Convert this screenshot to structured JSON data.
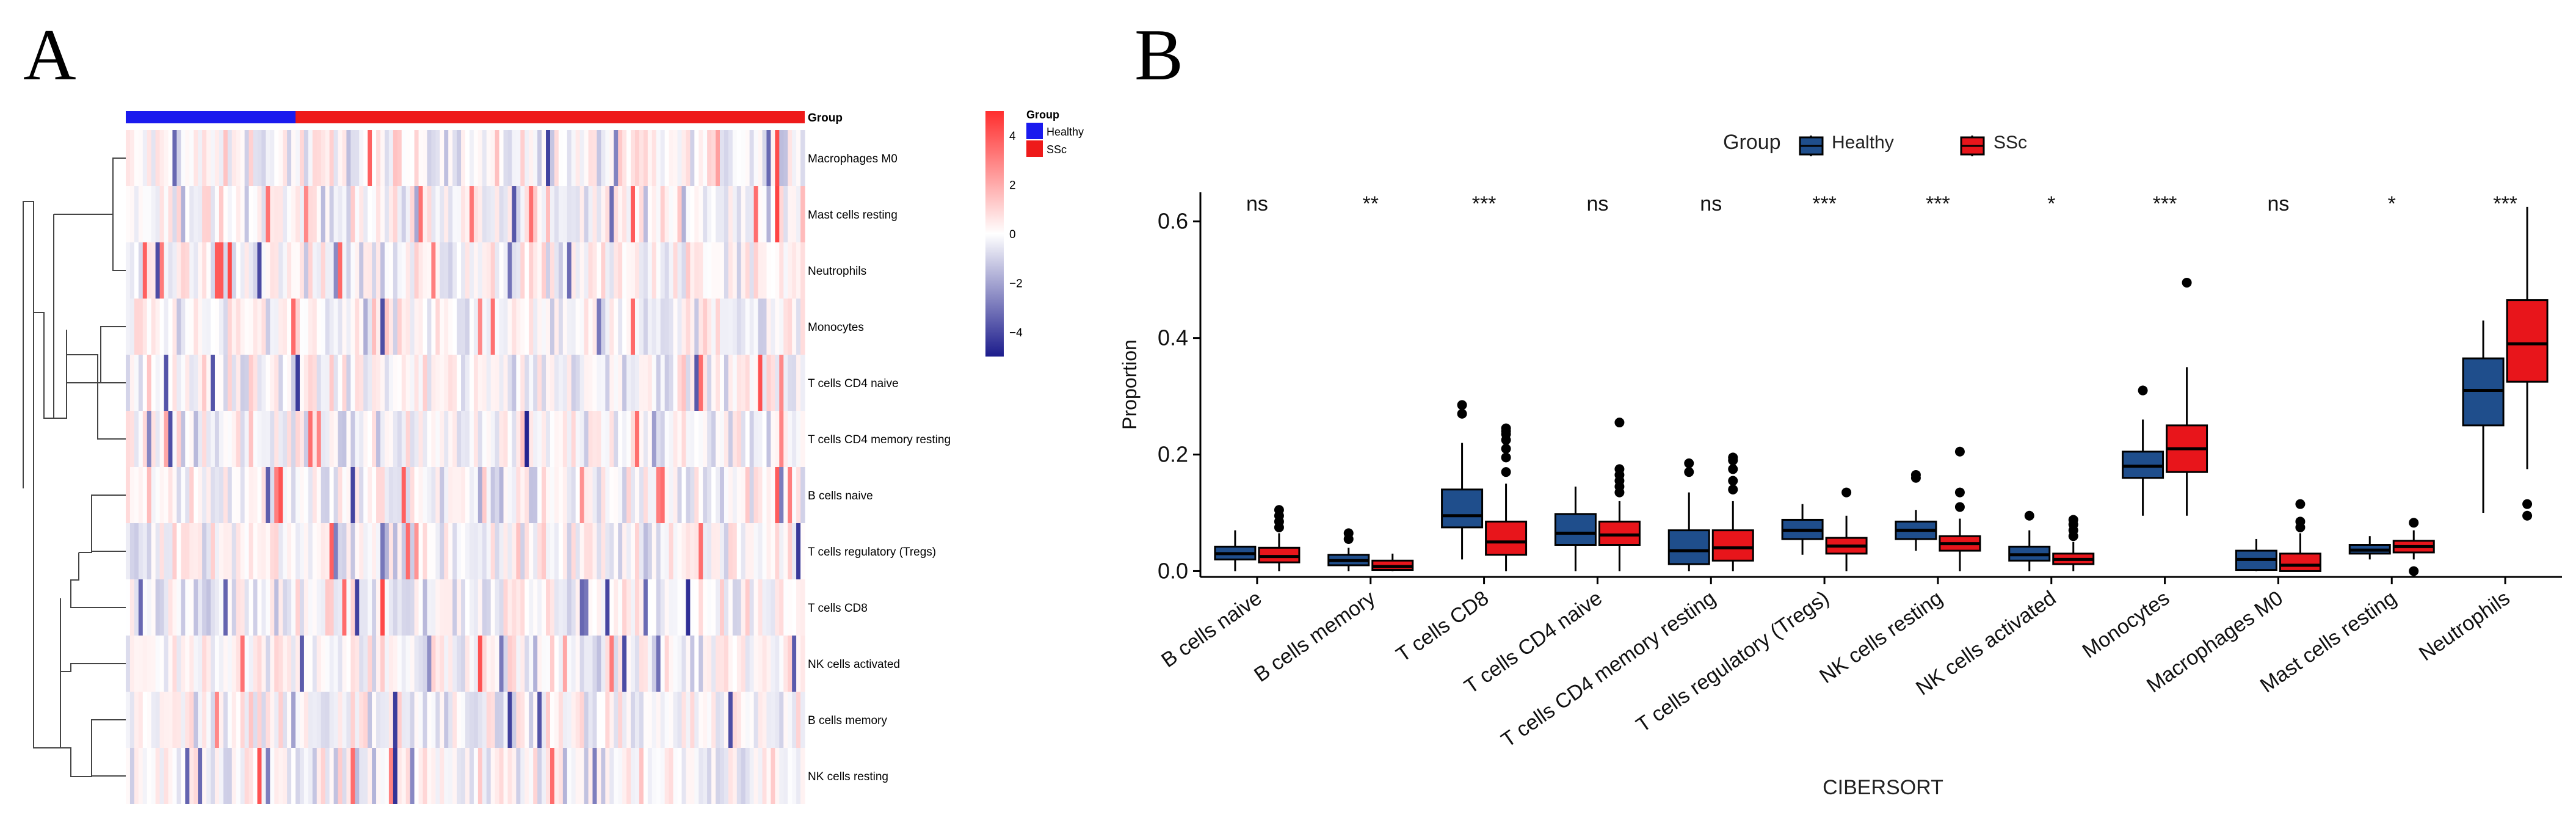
{
  "chart_data": [
    {
      "panel": "A",
      "type": "heatmap",
      "title": "",
      "annotation_label": "Group",
      "groups": [
        {
          "name": "Healthy",
          "color": "#1a1aee"
        },
        {
          "name": "SSc",
          "color": "#ee1a1a"
        }
      ],
      "healthy_fraction": 0.25,
      "rows": [
        "Macrophages M0",
        "Mast cells resting",
        "Neutrophils",
        "Monocytes",
        "T cells CD4 naive",
        "T cells CD4 memory resting",
        "B cells naive",
        "T cells regulatory (Tregs)",
        "T cells CD8",
        "NK cells activated",
        "B cells memory",
        "NK cells resting"
      ],
      "n_samples": 160,
      "color_scale": {
        "min": -5,
        "max": 5,
        "low_color": "#1c1c8c",
        "mid_color": "#ffffff",
        "high_color": "#ff3a3a",
        "ticks": [
          "4",
          "2",
          "0",
          "−2",
          "−4"
        ],
        "tick_values": [
          4,
          2,
          0,
          -2,
          -4
        ]
      }
    },
    {
      "panel": "B",
      "type": "box",
      "legend_title": "Group",
      "legend_position": "top",
      "series": [
        {
          "name": "Healthy",
          "color": "#1f4e8c"
        },
        {
          "name": "SSc",
          "color": "#e8151b"
        }
      ],
      "xlabel": "CIBERSORT",
      "ylabel": "Proportion",
      "ylim": [
        -0.01,
        0.65
      ],
      "yticks": [
        0.0,
        0.2,
        0.4,
        0.6
      ],
      "ytick_labels": [
        "0.0",
        "0.2",
        "0.4",
        "0.6"
      ],
      "categories": [
        "B cells naive",
        "B cells memory",
        "T cells CD8",
        "T cells CD4 naive",
        "T cells CD4 memory resting",
        "T cells regulatory (Tregs)",
        "NK cells resting",
        "NK cells activated",
        "Monocytes",
        "Macrophages M0",
        "Mast cells resting",
        "Neutrophils"
      ],
      "significance": [
        "ns",
        "**",
        "***",
        "ns",
        "ns",
        "***",
        "***",
        "*",
        "***",
        "ns",
        "*",
        "***"
      ],
      "boxes": [
        {
          "healthy": {
            "min": 0.0,
            "q1": 0.02,
            "median": 0.03,
            "q3": 0.042,
            "max": 0.07,
            "outliers": []
          },
          "ssc": {
            "min": 0.0,
            "q1": 0.015,
            "median": 0.025,
            "q3": 0.04,
            "max": 0.065,
            "outliers": [
              0.075,
              0.085,
              0.095,
              0.105
            ]
          }
        },
        {
          "healthy": {
            "min": 0.0,
            "q1": 0.01,
            "median": 0.018,
            "q3": 0.028,
            "max": 0.04,
            "outliers": [
              0.055,
              0.065
            ]
          },
          "ssc": {
            "min": 0.0,
            "q1": 0.002,
            "median": 0.008,
            "q3": 0.018,
            "max": 0.03,
            "outliers": []
          }
        },
        {
          "healthy": {
            "min": 0.02,
            "q1": 0.075,
            "median": 0.095,
            "q3": 0.14,
            "max": 0.22,
            "outliers": [
              0.27,
              0.285
            ]
          },
          "ssc": {
            "min": 0.0,
            "q1": 0.028,
            "median": 0.05,
            "q3": 0.085,
            "max": 0.15,
            "outliers": [
              0.17,
              0.195,
              0.21,
              0.225,
              0.235,
              0.24,
              0.245
            ]
          }
        },
        {
          "healthy": {
            "min": 0.0,
            "q1": 0.045,
            "median": 0.065,
            "q3": 0.098,
            "max": 0.145,
            "outliers": []
          },
          "ssc": {
            "min": 0.0,
            "q1": 0.045,
            "median": 0.062,
            "q3": 0.085,
            "max": 0.12,
            "outliers": [
              0.135,
              0.145,
              0.155,
              0.165,
              0.175,
              0.255
            ]
          }
        },
        {
          "healthy": {
            "min": 0.0,
            "q1": 0.012,
            "median": 0.035,
            "q3": 0.07,
            "max": 0.135,
            "outliers": [
              0.17,
              0.185
            ]
          },
          "ssc": {
            "min": 0.0,
            "q1": 0.018,
            "median": 0.04,
            "q3": 0.07,
            "max": 0.12,
            "outliers": [
              0.14,
              0.155,
              0.175,
              0.19,
              0.195
            ]
          }
        },
        {
          "healthy": {
            "min": 0.028,
            "q1": 0.055,
            "median": 0.07,
            "q3": 0.088,
            "max": 0.115,
            "outliers": []
          },
          "ssc": {
            "min": 0.0,
            "q1": 0.03,
            "median": 0.043,
            "q3": 0.057,
            "max": 0.095,
            "outliers": [
              0.135
            ]
          }
        },
        {
          "healthy": {
            "min": 0.035,
            "q1": 0.055,
            "median": 0.07,
            "q3": 0.085,
            "max": 0.105,
            "outliers": [
              0.16,
              0.165
            ]
          },
          "ssc": {
            "min": 0.0,
            "q1": 0.035,
            "median": 0.047,
            "q3": 0.06,
            "max": 0.09,
            "outliers": [
              0.11,
              0.135,
              0.205
            ]
          }
        },
        {
          "healthy": {
            "min": 0.0,
            "q1": 0.018,
            "median": 0.028,
            "q3": 0.042,
            "max": 0.07,
            "outliers": [
              0.095
            ]
          },
          "ssc": {
            "min": 0.0,
            "q1": 0.012,
            "median": 0.02,
            "q3": 0.03,
            "max": 0.05,
            "outliers": [
              0.06,
              0.07,
              0.08,
              0.088
            ]
          }
        },
        {
          "healthy": {
            "min": 0.095,
            "q1": 0.16,
            "median": 0.18,
            "q3": 0.205,
            "max": 0.26,
            "outliers": [
              0.31
            ]
          },
          "ssc": {
            "min": 0.095,
            "q1": 0.17,
            "median": 0.21,
            "q3": 0.25,
            "max": 0.35,
            "outliers": [
              0.495
            ]
          }
        },
        {
          "healthy": {
            "min": 0.0,
            "q1": 0.002,
            "median": 0.02,
            "q3": 0.035,
            "max": 0.055,
            "outliers": []
          },
          "ssc": {
            "min": 0.0,
            "q1": 0.0,
            "median": 0.01,
            "q3": 0.03,
            "max": 0.065,
            "outliers": [
              0.075,
              0.085,
              0.115
            ]
          }
        },
        {
          "healthy": {
            "min": 0.02,
            "q1": 0.03,
            "median": 0.036,
            "q3": 0.045,
            "max": 0.06,
            "outliers": []
          },
          "ssc": {
            "min": 0.02,
            "q1": 0.032,
            "median": 0.042,
            "q3": 0.052,
            "max": 0.07,
            "outliers": [
              0.0,
              0.083
            ]
          }
        },
        {
          "healthy": {
            "min": 0.1,
            "q1": 0.25,
            "median": 0.31,
            "q3": 0.365,
            "max": 0.43,
            "outliers": []
          },
          "ssc": {
            "min": 0.175,
            "q1": 0.325,
            "median": 0.39,
            "q3": 0.465,
            "max": 0.625,
            "outliers": [
              0.095,
              0.115
            ]
          }
        }
      ]
    }
  ],
  "panels": {
    "a_label": "A",
    "b_label": "B"
  }
}
